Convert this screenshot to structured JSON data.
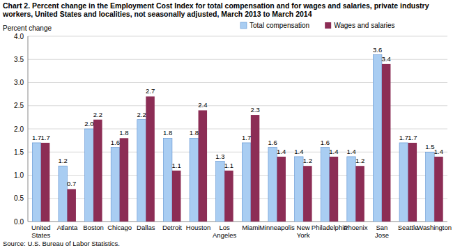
{
  "chart_data": {
    "type": "bar",
    "title": "Chart 2. Percent change in the Employment Cost Index for total compensation and for wages and salaries, private industry workers, United States and localities, not seasonally adjusted, March 2013 to March 2014",
    "y_label": "Percent change",
    "source": "Source: U.S. Bureau of Labor Statistics.",
    "categories": [
      "United States",
      "Atlanta",
      "Boston",
      "Chicago",
      "Dallas",
      "Detroit",
      "Houston",
      "Los Angeles",
      "Miami",
      "Minneapolis",
      "New York",
      "Philadelphia",
      "Phoenix",
      "San Jose",
      "Seattle",
      "Washington"
    ],
    "series": [
      {
        "name": "Total compensation",
        "color": "#a9cdf2",
        "values": [
          1.7,
          1.2,
          2.0,
          1.6,
          2.2,
          1.8,
          1.8,
          1.3,
          1.7,
          1.6,
          1.4,
          1.6,
          1.4,
          3.6,
          1.7,
          1.5
        ],
        "value_labels": [
          "1.7",
          "1.2",
          "2.0",
          "1.6",
          "2.2",
          "1.8",
          "1.8",
          "1.3",
          "1.7",
          "1.6",
          "1.4",
          "1.6",
          "1.4",
          "3.6",
          "1.7",
          "1.5"
        ]
      },
      {
        "name": "Wages and salaries",
        "color": "#8c2d55",
        "values": [
          1.7,
          0.7,
          2.2,
          1.8,
          2.7,
          1.1,
          2.4,
          1.1,
          2.3,
          1.4,
          1.2,
          1.4,
          1.2,
          3.4,
          1.7,
          1.4
        ],
        "value_labels": [
          "1.7",
          "0.7",
          "2.2",
          "1.8",
          "2.7",
          "1.1",
          "2.4",
          "1.1",
          "2.3",
          "1.4",
          "1.2",
          "1.4",
          "1.2",
          "3.4",
          "1.7",
          "1.4"
        ]
      }
    ],
    "ylim": [
      0,
      4
    ],
    "yticks": [
      {
        "value": 0,
        "label": "0.0"
      },
      {
        "value": 0.5,
        "label": "0.5"
      },
      {
        "value": 1,
        "label": "1.0"
      },
      {
        "value": 1.5,
        "label": "1.5"
      },
      {
        "value": 2,
        "label": "2.0"
      },
      {
        "value": 2.5,
        "label": "2.5"
      },
      {
        "value": 3,
        "label": "3.0"
      },
      {
        "value": 3.5,
        "label": "3.5"
      },
      {
        "value": 4,
        "label": "4.0"
      }
    ],
    "grid": true,
    "legend": "top",
    "data_labels": true
  }
}
